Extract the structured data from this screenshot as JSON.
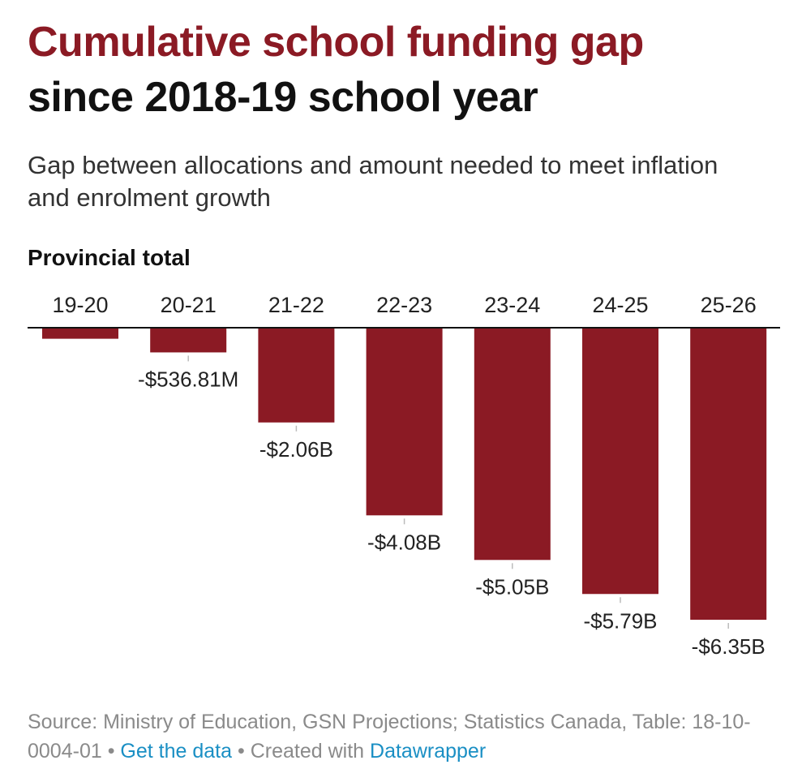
{
  "title_line1": "Cumulative school funding gap",
  "title_line2": "since 2018-19 school year",
  "subtitle": "Gap between allocations and amount needed to meet inflation and enrolment growth",
  "section_label": "Provincial total",
  "footer": {
    "source": "Source: Ministry of Education, GSN Projections; Statistics Canada, Table: 18-10-0004-01",
    "separator": "•",
    "get_data": "Get the data",
    "created_with": "Created with",
    "datawrapper": "Datawrapper"
  },
  "colors": {
    "bar": "#8b1a24",
    "title_accent": "#8b1a24",
    "link": "#1a8fc4"
  },
  "chart_data": {
    "type": "bar",
    "title": "Provincial total",
    "categories": [
      "19-20",
      "20-21",
      "21-22",
      "22-23",
      "23-24",
      "24-25",
      "25-26"
    ],
    "values": [
      -0.24,
      -0.53681,
      -2.06,
      -4.08,
      -5.05,
      -5.79,
      -6.35
    ],
    "labels": [
      "",
      "-$536.81M",
      "-$2.06B",
      "-$4.08B",
      "-$5.05B",
      "-$5.79B",
      "-$6.35B"
    ],
    "units": "billions CAD",
    "ylim": [
      -6.35,
      0
    ],
    "xlabel": "",
    "ylabel": "",
    "grid": false
  }
}
